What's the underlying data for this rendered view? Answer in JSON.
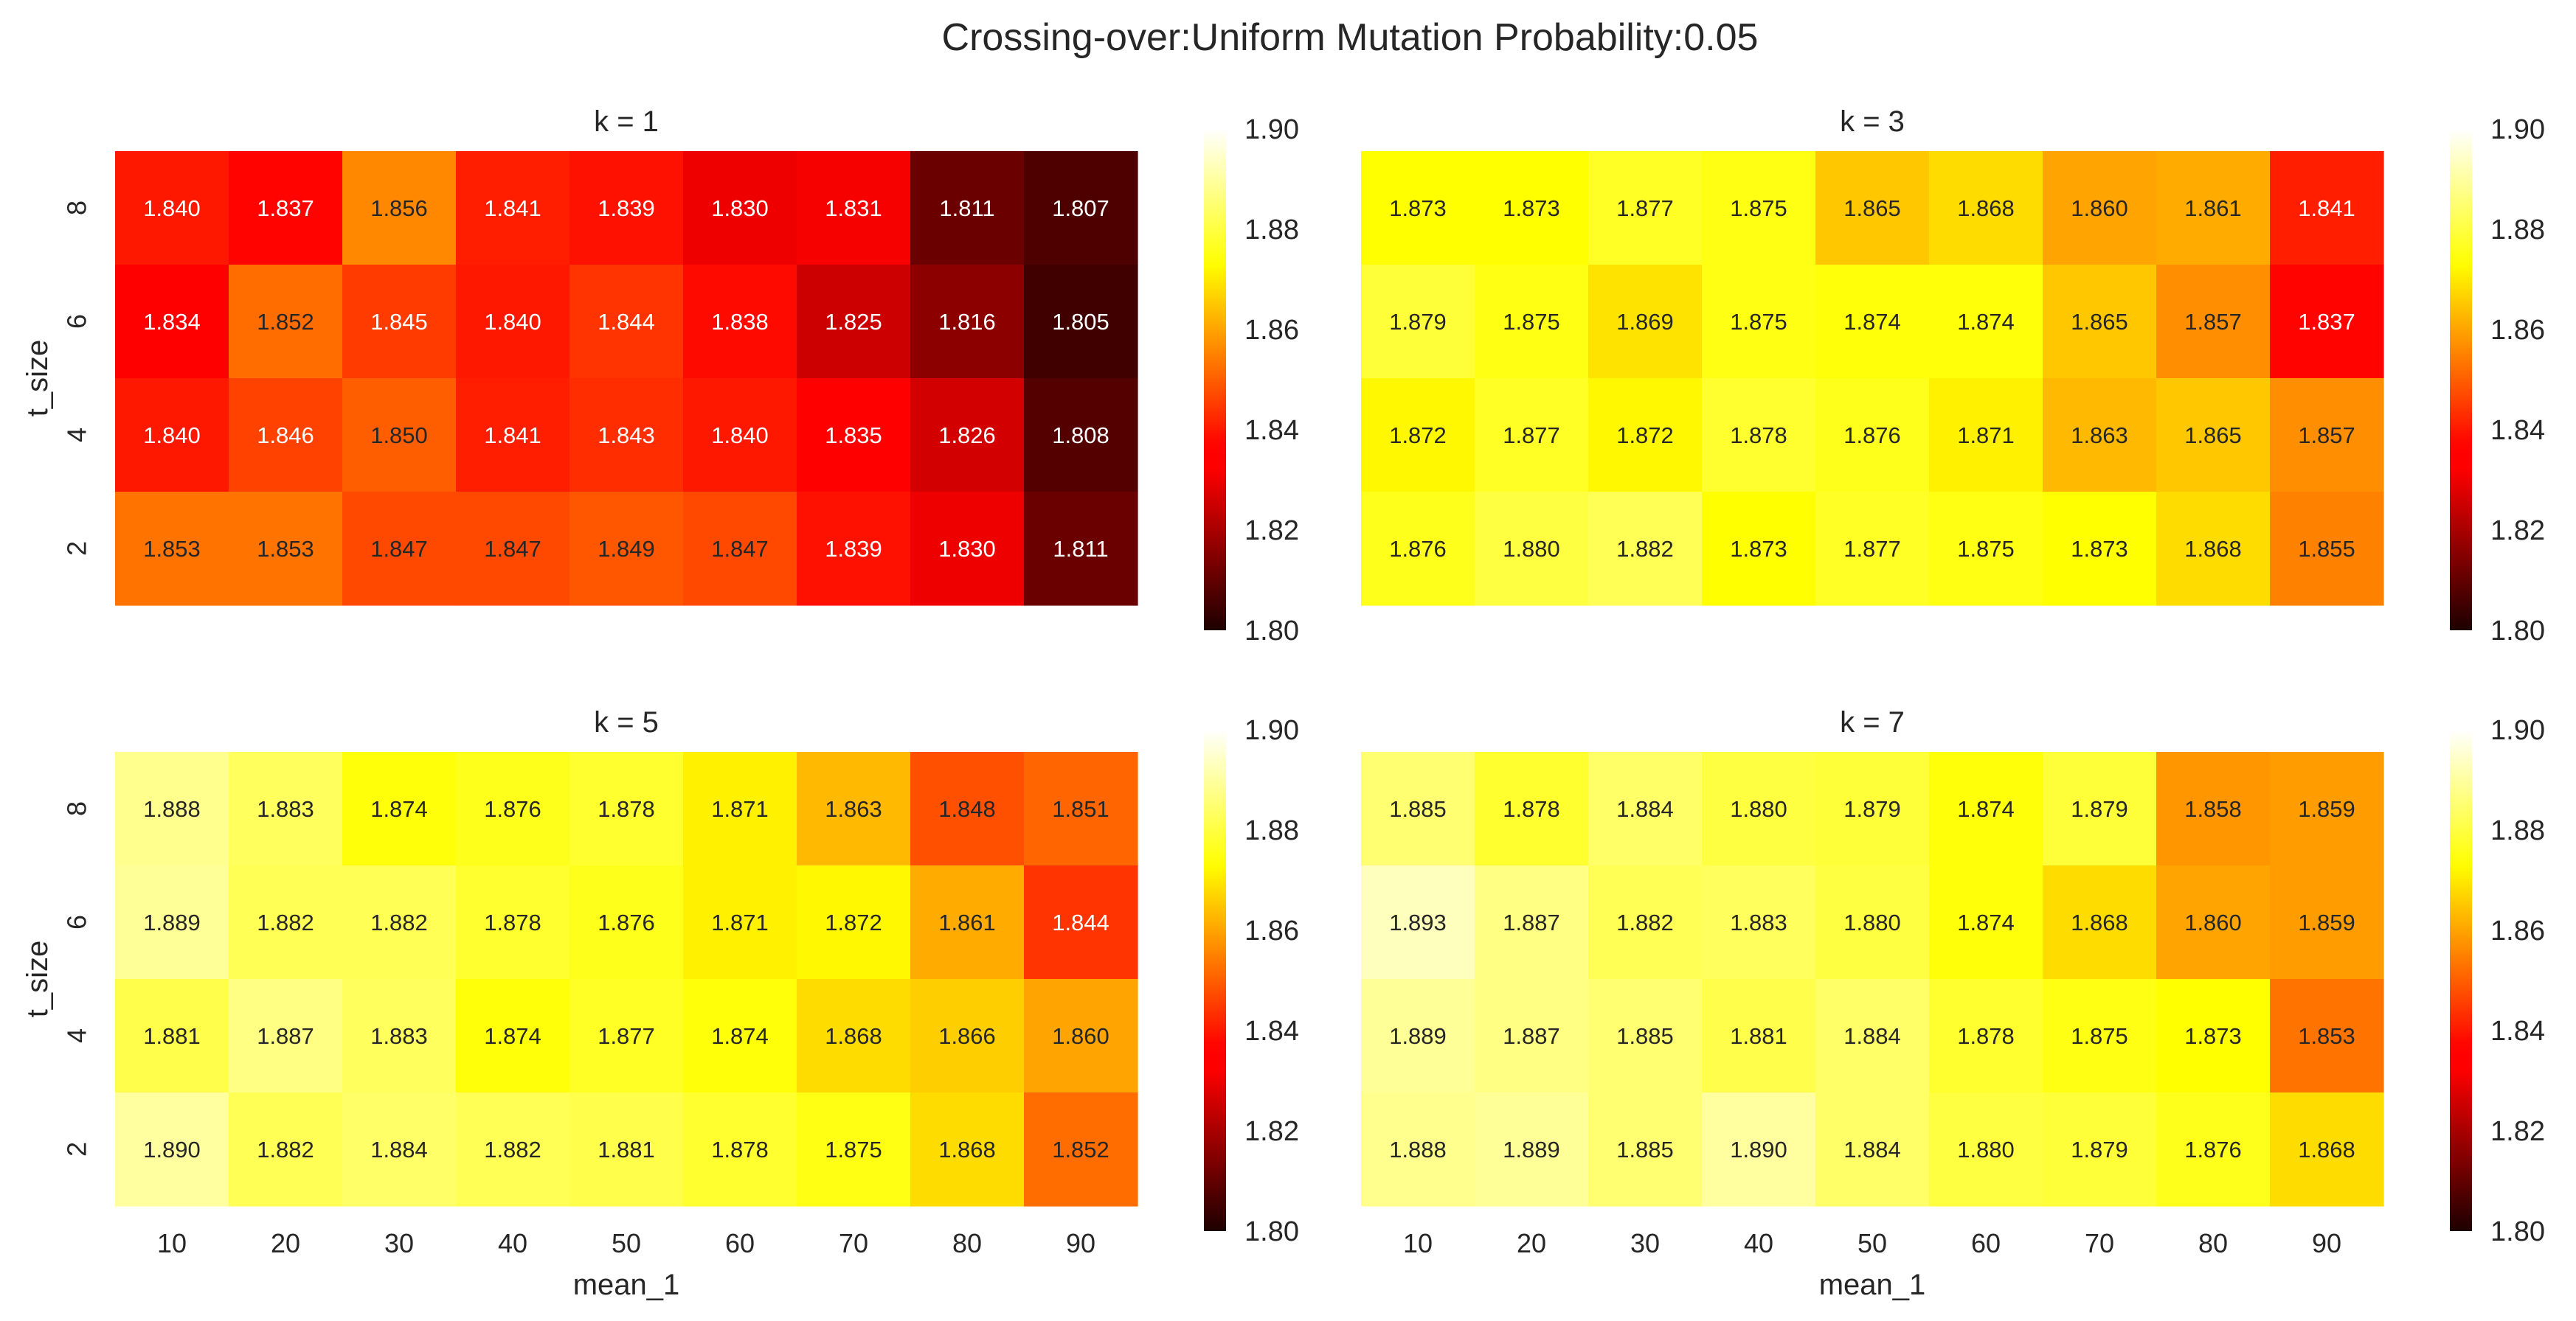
{
  "figure": {
    "suptitle": "Crossing-over:Uniform Mutation Probability:0.05"
  },
  "chart_data": [
    {
      "type": "heatmap",
      "title": "k = 1",
      "xlabel": "",
      "ylabel": "t_size",
      "x": [
        "10",
        "20",
        "30",
        "40",
        "50",
        "60",
        "70",
        "80",
        "90"
      ],
      "y": [
        "8",
        "6",
        "4",
        "2"
      ],
      "values": [
        [
          1.84,
          1.837,
          1.856,
          1.841,
          1.839,
          1.83,
          1.831,
          1.811,
          1.807
        ],
        [
          1.834,
          1.852,
          1.845,
          1.84,
          1.844,
          1.838,
          1.825,
          1.816,
          1.805
        ],
        [
          1.84,
          1.846,
          1.85,
          1.841,
          1.843,
          1.84,
          1.835,
          1.826,
          1.808
        ],
        [
          1.853,
          1.853,
          1.847,
          1.847,
          1.849,
          1.847,
          1.839,
          1.83,
          1.811
        ]
      ],
      "colorbar": {
        "min": 1.8,
        "max": 1.9,
        "ticks": [
          "1.80",
          "1.82",
          "1.84",
          "1.86",
          "1.88",
          "1.90"
        ]
      },
      "colormap": "hot"
    },
    {
      "type": "heatmap",
      "title": "k = 3",
      "xlabel": "",
      "ylabel": "",
      "x": [
        "10",
        "20",
        "30",
        "40",
        "50",
        "60",
        "70",
        "80",
        "90"
      ],
      "y": [
        "8",
        "6",
        "4",
        "2"
      ],
      "values": [
        [
          1.873,
          1.873,
          1.877,
          1.875,
          1.865,
          1.868,
          1.86,
          1.861,
          1.841
        ],
        [
          1.879,
          1.875,
          1.869,
          1.875,
          1.874,
          1.874,
          1.865,
          1.857,
          1.837
        ],
        [
          1.872,
          1.877,
          1.872,
          1.878,
          1.876,
          1.871,
          1.863,
          1.865,
          1.857
        ],
        [
          1.876,
          1.88,
          1.882,
          1.873,
          1.877,
          1.875,
          1.873,
          1.868,
          1.855
        ]
      ],
      "colorbar": {
        "min": 1.8,
        "max": 1.9,
        "ticks": [
          "1.80",
          "1.82",
          "1.84",
          "1.86",
          "1.88",
          "1.90"
        ]
      },
      "colormap": "hot"
    },
    {
      "type": "heatmap",
      "title": "k = 5",
      "xlabel": "mean_1",
      "ylabel": "t_size",
      "x": [
        "10",
        "20",
        "30",
        "40",
        "50",
        "60",
        "70",
        "80",
        "90"
      ],
      "y": [
        "8",
        "6",
        "4",
        "2"
      ],
      "values": [
        [
          1.888,
          1.883,
          1.874,
          1.876,
          1.878,
          1.871,
          1.863,
          1.848,
          1.851
        ],
        [
          1.889,
          1.882,
          1.882,
          1.878,
          1.876,
          1.871,
          1.872,
          1.861,
          1.844
        ],
        [
          1.881,
          1.887,
          1.883,
          1.874,
          1.877,
          1.874,
          1.868,
          1.866,
          1.86
        ],
        [
          1.89,
          1.882,
          1.884,
          1.882,
          1.881,
          1.878,
          1.875,
          1.868,
          1.852
        ]
      ],
      "colorbar": {
        "min": 1.8,
        "max": 1.9,
        "ticks": [
          "1.80",
          "1.82",
          "1.84",
          "1.86",
          "1.88",
          "1.90"
        ]
      },
      "colormap": "hot"
    },
    {
      "type": "heatmap",
      "title": "k = 7",
      "xlabel": "mean_1",
      "ylabel": "",
      "x": [
        "10",
        "20",
        "30",
        "40",
        "50",
        "60",
        "70",
        "80",
        "90"
      ],
      "y": [
        "8",
        "6",
        "4",
        "2"
      ],
      "values": [
        [
          1.885,
          1.878,
          1.884,
          1.88,
          1.879,
          1.874,
          1.879,
          1.858,
          1.859
        ],
        [
          1.893,
          1.887,
          1.882,
          1.883,
          1.88,
          1.874,
          1.868,
          1.86,
          1.859
        ],
        [
          1.889,
          1.887,
          1.885,
          1.881,
          1.884,
          1.878,
          1.875,
          1.873,
          1.853
        ],
        [
          1.888,
          1.889,
          1.885,
          1.89,
          1.884,
          1.88,
          1.879,
          1.876,
          1.868
        ]
      ],
      "colorbar": {
        "min": 1.8,
        "max": 1.9,
        "ticks": [
          "1.80",
          "1.82",
          "1.84",
          "1.86",
          "1.88",
          "1.90"
        ]
      },
      "colormap": "hot"
    }
  ]
}
